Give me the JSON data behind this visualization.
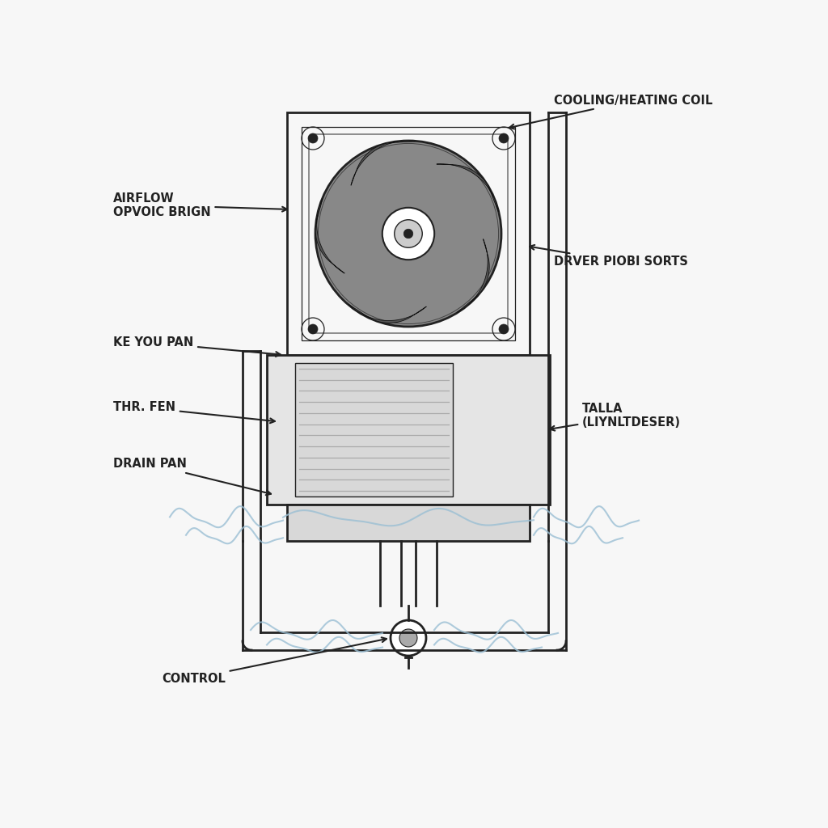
{
  "bg_color": "#f7f7f7",
  "line_color": "#222222",
  "fan_bg_color": "#888888",
  "fan_blade_dark": "#555555",
  "fan_blade_light": "#cccccc",
  "body_fill": "#e5e5e5",
  "drain_fill": "#d8d8d8",
  "water_color": "#9bbfd4",
  "labels": {
    "cooling_heating_coil": "COOLING/HEATING COIL",
    "airflow": "AIRFLOW\nOPVOIC BRIGN",
    "drver": "DRVER PIOBI SORTS",
    "ke_you_pan": "KE YOU PAN",
    "thr_fen": "THR. FEN",
    "drain_pan": "DRAIN PAN",
    "talla": "TALLA\n(LIYNLTDESER)",
    "control": "CONTROL"
  },
  "font_size": 10.5
}
